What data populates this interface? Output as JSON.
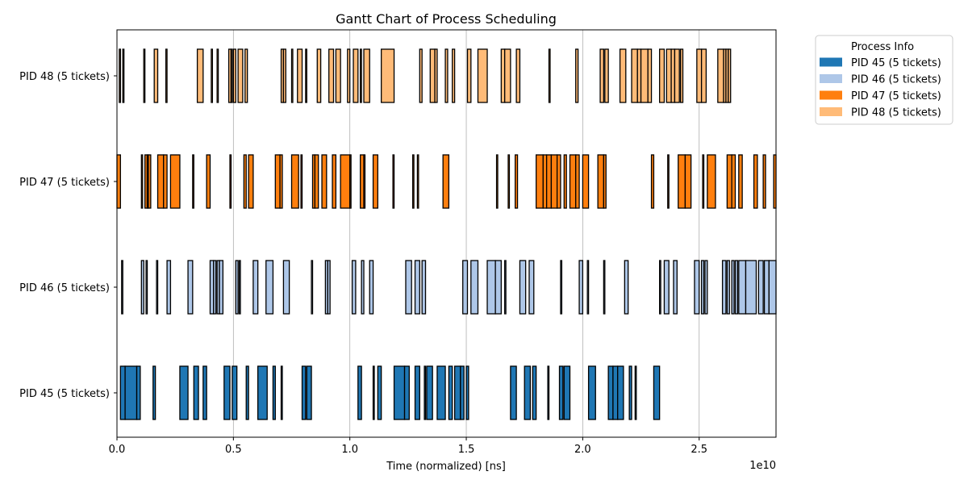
{
  "chart_data": {
    "type": "gantt",
    "title": "Gantt Chart of Process Scheduling",
    "xlabel": "Time (normalized) [ns]",
    "x_offset_text": "1e10",
    "x_scale_factor": 10000000000.0,
    "xlim": [
      0,
      28300000000.0
    ],
    "xticks": [
      0,
      5000000000.0,
      10000000000.0,
      15000000000.0,
      20000000000.0,
      25000000000.0
    ],
    "xtick_labels": [
      "0.0",
      "0.5",
      "1.0",
      "1.5",
      "2.0",
      "2.5"
    ],
    "x_grid": true,
    "legend_title": "Process Info",
    "legend_position": "outside-top-right",
    "series": [
      {
        "name": "PID 45 (5 tickets)",
        "color": "#1f77b4",
        "intervals": [
          [
            150000000.0,
            350000000.0
          ],
          [
            350000000.0,
            850000000.0
          ],
          [
            850000000.0,
            1000000000.0
          ],
          [
            1550000000.0,
            1650000000.0
          ],
          [
            2700000000.0,
            3050000000.0
          ],
          [
            3300000000.0,
            3500000000.0
          ],
          [
            3700000000.0,
            3850000000.0
          ],
          [
            4600000000.0,
            4850000000.0
          ],
          [
            4950000000.0,
            5150000000.0
          ],
          [
            5550000000.0,
            5650000000.0
          ],
          [
            6050000000.0,
            6450000000.0
          ],
          [
            6700000000.0,
            6800000000.0
          ],
          [
            7050000000.0,
            7100000000.0
          ],
          [
            7950000000.0,
            8100000000.0
          ],
          [
            8150000000.0,
            8350000000.0
          ],
          [
            10350000000.0,
            10500000000.0
          ],
          [
            11000000000.0,
            11050000000.0
          ],
          [
            11200000000.0,
            11350000000.0
          ],
          [
            11900000000.0,
            12350000000.0
          ],
          [
            12350000000.0,
            12550000000.0
          ],
          [
            12800000000.0,
            13000000000.0
          ],
          [
            13200000000.0,
            13250000000.0
          ],
          [
            13300000000.0,
            13550000000.0
          ],
          [
            13750000000.0,
            14100000000.0
          ],
          [
            14250000000.0,
            14400000000.0
          ],
          [
            14500000000.0,
            14750000000.0
          ],
          [
            14750000000.0,
            14900000000.0
          ],
          [
            15000000000.0,
            15100000000.0
          ],
          [
            16900000000.0,
            17150000000.0
          ],
          [
            17500000000.0,
            17750000000.0
          ],
          [
            17850000000.0,
            18000000000.0
          ],
          [
            18500000000.0,
            18550000000.0
          ],
          [
            19000000000.0,
            19150000000.0
          ],
          [
            19200000000.0,
            19450000000.0
          ],
          [
            20250000000.0,
            20550000000.0
          ],
          [
            21100000000.0,
            21300000000.0
          ],
          [
            21300000000.0,
            21500000000.0
          ],
          [
            21500000000.0,
            21750000000.0
          ],
          [
            22000000000.0,
            22100000000.0
          ],
          [
            22250000000.0,
            22300000000.0
          ],
          [
            23050000000.0,
            23300000000.0
          ]
        ]
      },
      {
        "name": "PID 46 (5 tickets)",
        "color": "#aec7e8",
        "intervals": [
          [
            200000000.0,
            250000000.0
          ],
          [
            1050000000.0,
            1150000000.0
          ],
          [
            1250000000.0,
            1300000000.0
          ],
          [
            1700000000.0,
            1750000000.0
          ],
          [
            2150000000.0,
            2300000000.0
          ],
          [
            3050000000.0,
            3250000000.0
          ],
          [
            4000000000.0,
            4150000000.0
          ],
          [
            4150000000.0,
            4250000000.0
          ],
          [
            4300000000.0,
            4400000000.0
          ],
          [
            4400000000.0,
            4550000000.0
          ],
          [
            5100000000.0,
            5200000000.0
          ],
          [
            5250000000.0,
            5300000000.0
          ],
          [
            5850000000.0,
            6050000000.0
          ],
          [
            6400000000.0,
            6700000000.0
          ],
          [
            7150000000.0,
            7400000000.0
          ],
          [
            8350000000.0,
            8400000000.0
          ],
          [
            8950000000.0,
            9050000000.0
          ],
          [
            9050000000.0,
            9150000000.0
          ],
          [
            10100000000.0,
            10250000000.0
          ],
          [
            10500000000.0,
            10600000000.0
          ],
          [
            10850000000.0,
            11000000000.0
          ],
          [
            12400000000.0,
            12650000000.0
          ],
          [
            12800000000.0,
            13000000000.0
          ],
          [
            13100000000.0,
            13250000000.0
          ],
          [
            14850000000.0,
            15050000000.0
          ],
          [
            15200000000.0,
            15500000000.0
          ],
          [
            15900000000.0,
            16250000000.0
          ],
          [
            16250000000.0,
            16500000000.0
          ],
          [
            16650000000.0,
            16700000000.0
          ],
          [
            17300000000.0,
            17550000000.0
          ],
          [
            17700000000.0,
            17900000000.0
          ],
          [
            19050000000.0,
            19100000000.0
          ],
          [
            19850000000.0,
            20000000000.0
          ],
          [
            20200000000.0,
            20250000000.0
          ],
          [
            20900000000.0,
            20950000000.0
          ],
          [
            21800000000.0,
            21950000000.0
          ],
          [
            23300000000.0,
            23350000000.0
          ],
          [
            23500000000.0,
            23700000000.0
          ],
          [
            23900000000.0,
            24050000000.0
          ],
          [
            24800000000.0,
            25000000000.0
          ],
          [
            25100000000.0,
            25200000000.0
          ],
          [
            25250000000.0,
            25350000000.0
          ],
          [
            26000000000.0,
            26150000000.0
          ],
          [
            26200000000.0,
            26300000000.0
          ],
          [
            26400000000.0,
            26500000000.0
          ],
          [
            26550000000.0,
            26650000000.0
          ],
          [
            26700000000.0,
            27000000000.0
          ],
          [
            27000000000.0,
            27450000000.0
          ],
          [
            27550000000.0,
            27750000000.0
          ],
          [
            27800000000.0,
            28000000000.0
          ],
          [
            28000000000.0,
            28300000000.0
          ]
        ]
      },
      {
        "name": "PID 47 (5 tickets)",
        "color": "#ff7f0e",
        "intervals": [
          [
            0,
            150000000.0
          ],
          [
            1050000000.0,
            1100000000.0
          ],
          [
            1200000000.0,
            1300000000.0
          ],
          [
            1300000000.0,
            1350000000.0
          ],
          [
            1350000000.0,
            1450000000.0
          ],
          [
            1750000000.0,
            2000000000.0
          ],
          [
            2000000000.0,
            2150000000.0
          ],
          [
            2300000000.0,
            2700000000.0
          ],
          [
            3250000000.0,
            3300000000.0
          ],
          [
            3850000000.0,
            4000000000.0
          ],
          [
            4850000000.0,
            4900000000.0
          ],
          [
            5450000000.0,
            5550000000.0
          ],
          [
            5650000000.0,
            5850000000.0
          ],
          [
            6800000000.0,
            7000000000.0
          ],
          [
            7000000000.0,
            7100000000.0
          ],
          [
            7500000000.0,
            7800000000.0
          ],
          [
            7900000000.0,
            7950000000.0
          ],
          [
            8400000000.0,
            8500000000.0
          ],
          [
            8500000000.0,
            8650000000.0
          ],
          [
            8800000000.0,
            9000000000.0
          ],
          [
            9250000000.0,
            9400000000.0
          ],
          [
            9600000000.0,
            10000000000.0
          ],
          [
            10000000000.0,
            10050000000.0
          ],
          [
            10450000000.0,
            10600000000.0
          ],
          [
            10600000000.0,
            10650000000.0
          ],
          [
            11000000000.0,
            11200000000.0
          ],
          [
            11850000000.0,
            11900000000.0
          ],
          [
            12700000000.0,
            12750000000.0
          ],
          [
            12900000000.0,
            12950000000.0
          ],
          [
            14000000000.0,
            14250000000.0
          ],
          [
            16300000000.0,
            16350000000.0
          ],
          [
            16800000000.0,
            16850000000.0
          ],
          [
            17100000000.0,
            17200000000.0
          ],
          [
            18000000000.0,
            18300000000.0
          ],
          [
            18300000000.0,
            18450000000.0
          ],
          [
            18450000000.0,
            18650000000.0
          ],
          [
            18650000000.0,
            18900000000.0
          ],
          [
            18900000000.0,
            19050000000.0
          ],
          [
            19200000000.0,
            19300000000.0
          ],
          [
            19450000000.0,
            19700000000.0
          ],
          [
            19700000000.0,
            19850000000.0
          ],
          [
            20000000000.0,
            20250000000.0
          ],
          [
            20650000000.0,
            20900000000.0
          ],
          [
            20900000000.0,
            21000000000.0
          ],
          [
            22950000000.0,
            23050000000.0
          ],
          [
            23650000000.0,
            23700000000.0
          ],
          [
            24100000000.0,
            24400000000.0
          ],
          [
            24400000000.0,
            24650000000.0
          ],
          [
            25150000000.0,
            25200000000.0
          ],
          [
            25350000000.0,
            25700000000.0
          ],
          [
            26200000000.0,
            26400000000.0
          ],
          [
            26400000000.0,
            26550000000.0
          ],
          [
            26700000000.0,
            26850000000.0
          ],
          [
            27350000000.0,
            27500000000.0
          ],
          [
            27750000000.0,
            27850000000.0
          ],
          [
            28200000000.0,
            28300000000.0
          ]
        ]
      },
      {
        "name": "PID 48 (5 tickets)",
        "color": "#ffbb78",
        "intervals": [
          [
            100000000.0,
            150000000.0
          ],
          [
            250000000.0,
            300000000.0
          ],
          [
            1150000000.0,
            1200000000.0
          ],
          [
            1600000000.0,
            1750000000.0
          ],
          [
            2100000000.0,
            2150000000.0
          ],
          [
            3450000000.0,
            3700000000.0
          ],
          [
            4050000000.0,
            4100000000.0
          ],
          [
            4300000000.0,
            4350000000.0
          ],
          [
            4800000000.0,
            4900000000.0
          ],
          [
            4900000000.0,
            4950000000.0
          ],
          [
            5000000000.0,
            5100000000.0
          ],
          [
            5200000000.0,
            5400000000.0
          ],
          [
            5500000000.0,
            5600000000.0
          ],
          [
            7050000000.0,
            7150000000.0
          ],
          [
            7150000000.0,
            7250000000.0
          ],
          [
            7500000000.0,
            7550000000.0
          ],
          [
            7750000000.0,
            7950000000.0
          ],
          [
            8100000000.0,
            8150000000.0
          ],
          [
            8600000000.0,
            8750000000.0
          ],
          [
            9100000000.0,
            9300000000.0
          ],
          [
            9400000000.0,
            9600000000.0
          ],
          [
            9900000000.0,
            10000000000.0
          ],
          [
            10150000000.0,
            10350000000.0
          ],
          [
            10450000000.0,
            10500000000.0
          ],
          [
            10600000000.0,
            10850000000.0
          ],
          [
            11350000000.0,
            11900000000.0
          ],
          [
            13000000000.0,
            13100000000.0
          ],
          [
            13450000000.0,
            13650000000.0
          ],
          [
            13650000000.0,
            13750000000.0
          ],
          [
            14100000000.0,
            14200000000.0
          ],
          [
            14400000000.0,
            14500000000.0
          ],
          [
            15050000000.0,
            15200000000.0
          ],
          [
            15500000000.0,
            15900000000.0
          ],
          [
            16500000000.0,
            16650000000.0
          ],
          [
            16650000000.0,
            16900000000.0
          ],
          [
            17150000000.0,
            17300000000.0
          ],
          [
            18550000000.0,
            18600000000.0
          ],
          [
            19700000000.0,
            19800000000.0
          ],
          [
            20750000000.0,
            20900000000.0
          ],
          [
            20950000000.0,
            21100000000.0
          ],
          [
            21600000000.0,
            21850000000.0
          ],
          [
            22100000000.0,
            22350000000.0
          ],
          [
            22350000000.0,
            22500000000.0
          ],
          [
            22500000000.0,
            22800000000.0
          ],
          [
            22800000000.0,
            22950000000.0
          ],
          [
            23300000000.0,
            23500000000.0
          ],
          [
            23600000000.0,
            23800000000.0
          ],
          [
            23800000000.0,
            23950000000.0
          ],
          [
            23950000000.0,
            24150000000.0
          ],
          [
            24200000000.0,
            24300000000.0
          ],
          [
            24900000000.0,
            25100000000.0
          ],
          [
            25100000000.0,
            25300000000.0
          ],
          [
            25800000000.0,
            26050000000.0
          ],
          [
            26050000000.0,
            26150000000.0
          ],
          [
            26150000000.0,
            26250000000.0
          ],
          [
            26250000000.0,
            26350000000.0
          ]
        ]
      }
    ]
  }
}
